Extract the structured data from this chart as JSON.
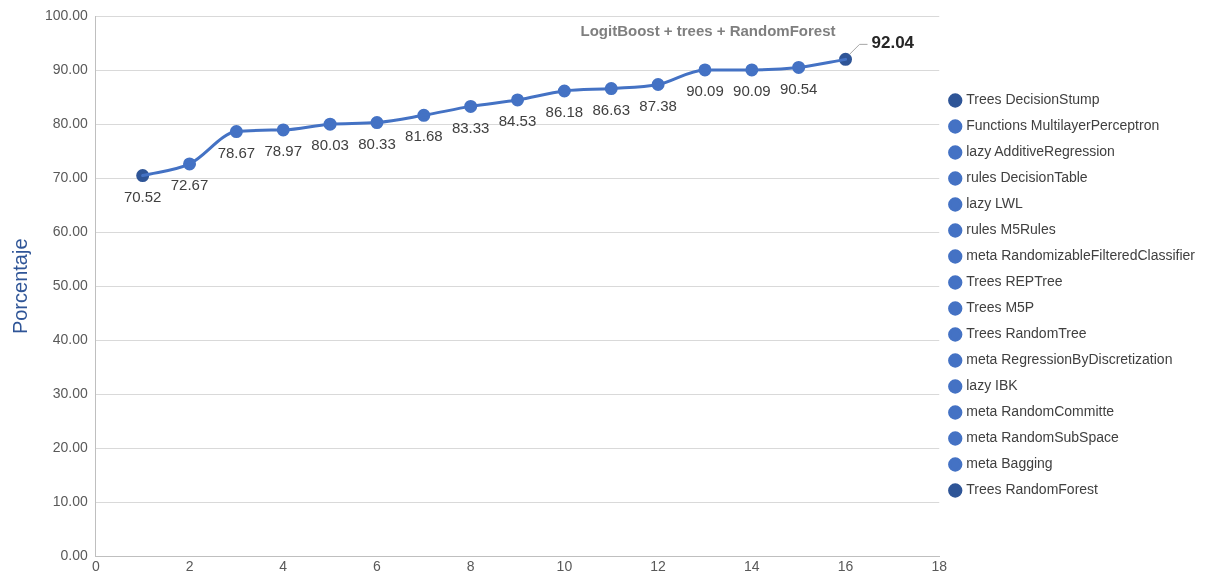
{
  "chart_data": {
    "type": "line",
    "ylabel": "Porcentaje",
    "annotations": [
      {
        "text": "LogitBoost + trees + RandomForest",
        "x": 16,
        "y": 92.04
      }
    ],
    "xlim": [
      0,
      18
    ],
    "xticks": [
      0,
      2,
      4,
      6,
      8,
      10,
      12,
      14,
      16,
      18
    ],
    "ylim": [
      0,
      100
    ],
    "yticks": [
      {
        "value": 0,
        "label": "0.00"
      },
      {
        "value": 10,
        "label": "10.00"
      },
      {
        "value": 20,
        "label": "20.00"
      },
      {
        "value": 30,
        "label": "30.00"
      },
      {
        "value": 40,
        "label": "40.00"
      },
      {
        "value": 50,
        "label": "50.00"
      },
      {
        "value": 60,
        "label": "60.00"
      },
      {
        "value": 70,
        "label": "70.00"
      },
      {
        "value": 80,
        "label": "80.00"
      },
      {
        "value": 90,
        "label": "90.00"
      },
      {
        "value": 100,
        "label": "100.00"
      }
    ],
    "grid": "y",
    "legend": "right",
    "marker": "circle",
    "line_style": "solid",
    "data_labels": true,
    "series": [
      {
        "color": "#4472c4",
        "x": [
          1,
          2,
          3,
          4,
          5,
          6,
          7,
          8,
          9,
          10,
          11,
          12,
          13,
          14,
          15,
          16
        ],
        "values": [
          70.52,
          72.67,
          78.67,
          78.97,
          80.03,
          80.33,
          81.68,
          83.33,
          84.53,
          86.18,
          86.63,
          87.38,
          90.09,
          90.09,
          90.54,
          92.04
        ],
        "marker": "none",
        "data_labels": false
      },
      {
        "name": "Trees DecisionStump",
        "color": "#2f5597",
        "x": [
          1
        ],
        "values": [
          70.52
        ]
      },
      {
        "name": "Functions MultilayerPerceptron",
        "color": "#4472c4",
        "x": [
          2
        ],
        "values": [
          72.67
        ]
      },
      {
        "name": "lazy AdditiveRegression",
        "color": "#4472c4",
        "x": [
          3
        ],
        "values": [
          78.67
        ]
      },
      {
        "name": "rules DecisionTable",
        "color": "#4472c4",
        "x": [
          4
        ],
        "values": [
          78.97
        ]
      },
      {
        "name": "lazy LWL",
        "color": "#4472c4",
        "x": [
          5
        ],
        "values": [
          80.03
        ]
      },
      {
        "name": "rules M5Rules",
        "color": "#4472c4",
        "x": [
          6
        ],
        "values": [
          80.33
        ]
      },
      {
        "name": "meta RandomizableFilteredClassifier",
        "color": "#4472c4",
        "x": [
          7
        ],
        "values": [
          81.68
        ]
      },
      {
        "name": "Trees REPTree",
        "color": "#4472c4",
        "x": [
          8
        ],
        "values": [
          83.33
        ]
      },
      {
        "name": "Trees M5P",
        "color": "#4472c4",
        "x": [
          9
        ],
        "values": [
          84.53
        ]
      },
      {
        "name": "Trees RandomTree",
        "color": "#4472c4",
        "x": [
          10
        ],
        "values": [
          86.18
        ]
      },
      {
        "name": "meta RegressionByDiscretization",
        "color": "#4472c4",
        "x": [
          11
        ],
        "values": [
          86.63
        ]
      },
      {
        "name": "lazy IBK",
        "color": "#4472c4",
        "x": [
          12
        ],
        "values": [
          87.38
        ]
      },
      {
        "name": "meta RandomCommitte",
        "color": "#4472c4",
        "x": [
          13
        ],
        "values": [
          90.09
        ]
      },
      {
        "name": "meta RandomSubSpace",
        "color": "#4472c4",
        "x": [
          14
        ],
        "values": [
          90.09
        ]
      },
      {
        "name": "meta Bagging",
        "color": "#4472c4",
        "x": [
          15
        ],
        "values": [
          90.54
        ]
      },
      {
        "name": "Trees RandomForest",
        "color": "#2f5597",
        "x": [
          16
        ],
        "values": [
          92.04
        ]
      }
    ]
  }
}
